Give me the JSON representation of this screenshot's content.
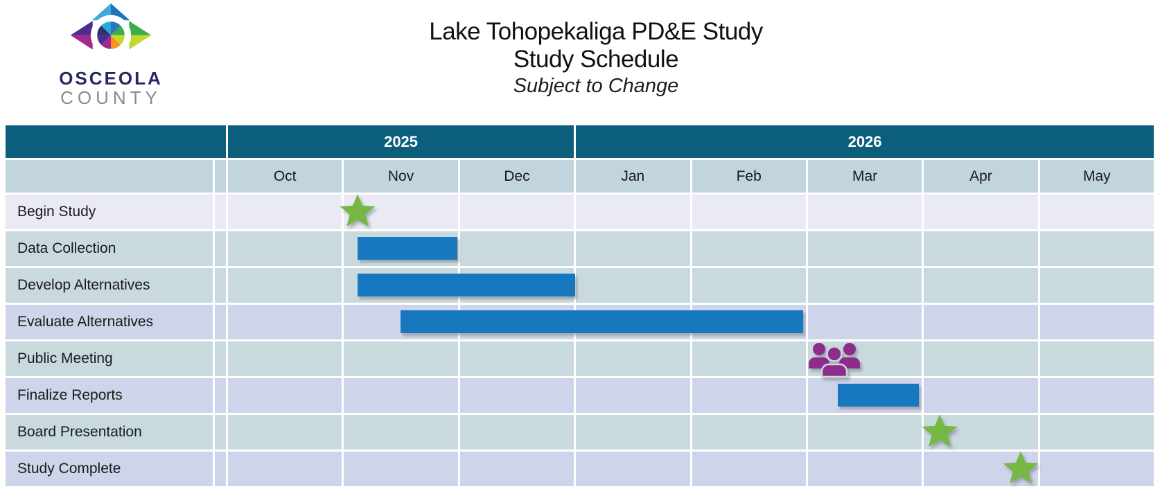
{
  "logo": {
    "name_line1": "OSCEOLA",
    "name_line2": "COUNTY"
  },
  "header": {
    "title_line1": "Lake Tohopekaliga PD&E Study",
    "title_line2": "Study Schedule",
    "subtitle": "Subject to Change"
  },
  "colors": {
    "year_header_teal": "#0b5f7c",
    "month_header_fill": "#c2d5dc",
    "row_blue_fill": "#c8dade",
    "row_lavender_fill": "#ced4e9",
    "row_lightest_fill": "#e9eaf4",
    "task_bar_blue": "#1777bf",
    "milestone_star_green": "#75b843",
    "public_meeting_purple": "#8e2c8c",
    "grid_line_white": "#ffffff"
  },
  "chart_data": {
    "type": "bar",
    "subtype": "gantt-schedule",
    "title": "Lake Tohopekaliga PD&E Study - Study Schedule",
    "subtitle": "Subject to Change",
    "axis_start": "Oct 2025",
    "axis_end": "May 2026",
    "year_groups": [
      {
        "label": "2025",
        "span": 3
      },
      {
        "label": "2026",
        "span": 5
      }
    ],
    "months": [
      "Oct",
      "Nov",
      "Dec",
      "Jan",
      "Feb",
      "Mar",
      "Apr",
      "May"
    ],
    "tasks": [
      {
        "label": "Begin Study",
        "marker": "star",
        "pos": 1.12,
        "timing": "early Nov 2025",
        "row_tint": "lightest"
      },
      {
        "label": "Data Collection",
        "marker": "bar",
        "start": 1.12,
        "end": 1.98,
        "timing": "Nov 2025",
        "row_tint": "blue"
      },
      {
        "label": "Develop Alternatives",
        "marker": "bar",
        "start": 1.12,
        "end": 3.0,
        "timing": "Nov 2025 - Dec 2025",
        "row_tint": "blue"
      },
      {
        "label": "Evaluate Alternatives",
        "marker": "bar",
        "start": 1.49,
        "end": 4.97,
        "timing": "mid Nov 2025 - Feb 2026",
        "row_tint": "lavender"
      },
      {
        "label": "Public Meeting",
        "marker": "people",
        "pos": 5.24,
        "timing": "Mar 2026",
        "row_tint": "blue"
      },
      {
        "label": "Finalize Reports",
        "marker": "bar",
        "start": 5.27,
        "end": 5.97,
        "timing": "mid Mar 2026 - end Mar 2026",
        "row_tint": "lavender"
      },
      {
        "label": "Board Presentation",
        "marker": "star",
        "pos": 6.15,
        "timing": "early Apr 2026",
        "row_tint": "blue"
      },
      {
        "label": "Study Complete",
        "marker": "star",
        "pos": 6.85,
        "timing": "late Apr 2026",
        "row_tint": "lavender"
      }
    ]
  }
}
